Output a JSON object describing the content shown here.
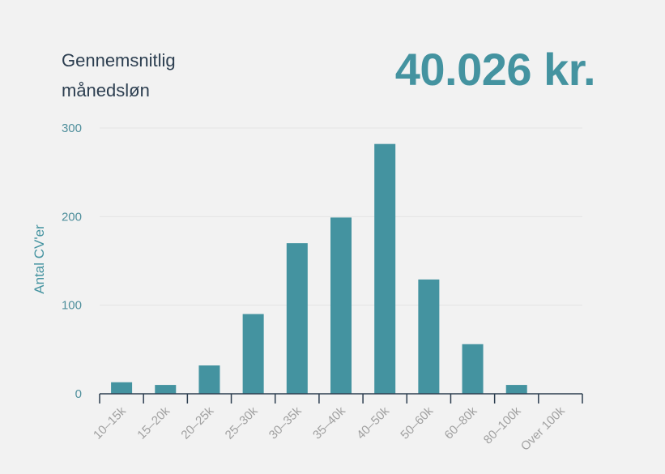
{
  "header": {
    "title": "Gennemsnitlig månedsløn",
    "value": "40.026 kr."
  },
  "colors": {
    "bar": "#4493a0",
    "axis": "#2c3e50",
    "grid": "#e4e4e4",
    "title": "#2c3e50",
    "accent": "#4493a0"
  },
  "chart_data": {
    "type": "bar",
    "categories": [
      "10–15k",
      "15–20k",
      "20–25k",
      "25–30k",
      "30–35k",
      "35–40k",
      "40–50k",
      "50–60k",
      "60–80k",
      "80–100k",
      "Over 100k"
    ],
    "values": [
      13,
      10,
      32,
      90,
      170,
      199,
      282,
      129,
      56,
      10,
      0
    ],
    "ylabel": "Antal CV'er",
    "ylim": [
      0,
      300
    ],
    "yticks": [
      0,
      100,
      200,
      300
    ],
    "grid": true
  }
}
